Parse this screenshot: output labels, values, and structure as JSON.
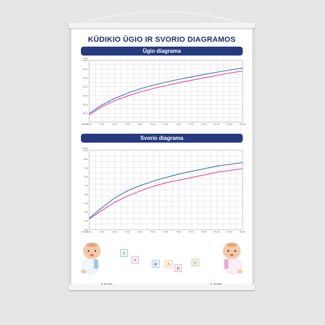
{
  "poster": {
    "title": "KŪDIKIO ŪGIO IR SVORIO DIAGRAMOS"
  },
  "legend": {
    "boy": "Berniukų",
    "girl": "mergaičių",
    "boy_color": "#3b6fbf",
    "girl_color": "#e0449a"
  },
  "blocks": [
    "C",
    "A",
    "B",
    "A",
    "B",
    "C"
  ],
  "chart_data": [
    {
      "type": "line",
      "title": "Ūgio diagrama",
      "ylabel": "Ūgis",
      "xlabel": "Amžius",
      "xlim": [
        0,
        12
      ],
      "ylim": [
        45,
        80
      ],
      "x": [
        0,
        1,
        2,
        3,
        4,
        5,
        6,
        7,
        8,
        9,
        10,
        11,
        12
      ],
      "x_tick_labels": [
        "0 mėn.",
        "1 mėn.",
        "2 mėn.",
        "3 mėn.",
        "4 mėn.",
        "5 mėn.",
        "6 mėn.",
        "7 mėn.",
        "8 mėn.",
        "9 mėn.",
        "10 mėn.",
        "11 mėn.",
        "12 mėn."
      ],
      "y_ticks": [
        50,
        55,
        60,
        65,
        70,
        75,
        80
      ],
      "y_tick_labels": [
        "50 cm",
        "55 cm",
        "60 cm",
        "65 cm",
        "70 cm",
        "75 cm",
        "80 cm"
      ],
      "series": [
        {
          "name": "Berniukų",
          "color": "#3b6fbf",
          "values": [
            49.9,
            54.7,
            58.4,
            61.4,
            63.9,
            65.9,
            67.6,
            69.2,
            70.6,
            72.0,
            73.3,
            74.5,
            75.7
          ]
        },
        {
          "name": "mergaičių",
          "color": "#e0449a",
          "values": [
            49.1,
            53.7,
            57.1,
            59.8,
            62.1,
            64.0,
            65.7,
            67.3,
            68.7,
            70.1,
            71.5,
            72.8,
            74.0
          ]
        }
      ],
      "grid": true
    },
    {
      "type": "line",
      "title": "Svorio diagrama",
      "ylabel": "Svoris",
      "xlabel": "Amžius",
      "xlim": [
        0,
        12
      ],
      "ylim": [
        2,
        11
      ],
      "x": [
        0,
        1,
        2,
        3,
        4,
        5,
        6,
        7,
        8,
        9,
        10,
        11,
        12
      ],
      "x_tick_labels": [
        "0 mėn.",
        "1 mėn.",
        "2 mėn.",
        "3 mėn.",
        "4 mėn.",
        "5 mėn.",
        "6 mėn.",
        "7 mėn.",
        "8 mėn.",
        "9 mėn.",
        "10 mėn.",
        "11 mėn.",
        "12 mėn."
      ],
      "y_ticks": [
        2,
        3,
        4,
        5,
        6,
        7,
        8,
        9,
        10,
        11
      ],
      "y_tick_labels": [
        "2 kg",
        "3 kg",
        "4 kg",
        "5 kg",
        "6 kg",
        "7 kg",
        "8 kg",
        "9 kg",
        "10 kg",
        "11 kg"
      ],
      "series": [
        {
          "name": "Berniukų",
          "color": "#3b6fbf",
          "values": [
            3.3,
            4.5,
            5.6,
            6.4,
            7.0,
            7.5,
            7.9,
            8.3,
            8.6,
            8.9,
            9.2,
            9.4,
            9.6
          ]
        },
        {
          "name": "mergaičių",
          "color": "#e0449a",
          "values": [
            3.2,
            4.2,
            5.1,
            5.8,
            6.4,
            6.9,
            7.3,
            7.6,
            7.9,
            8.2,
            8.5,
            8.7,
            8.9
          ]
        }
      ],
      "grid": true
    }
  ]
}
